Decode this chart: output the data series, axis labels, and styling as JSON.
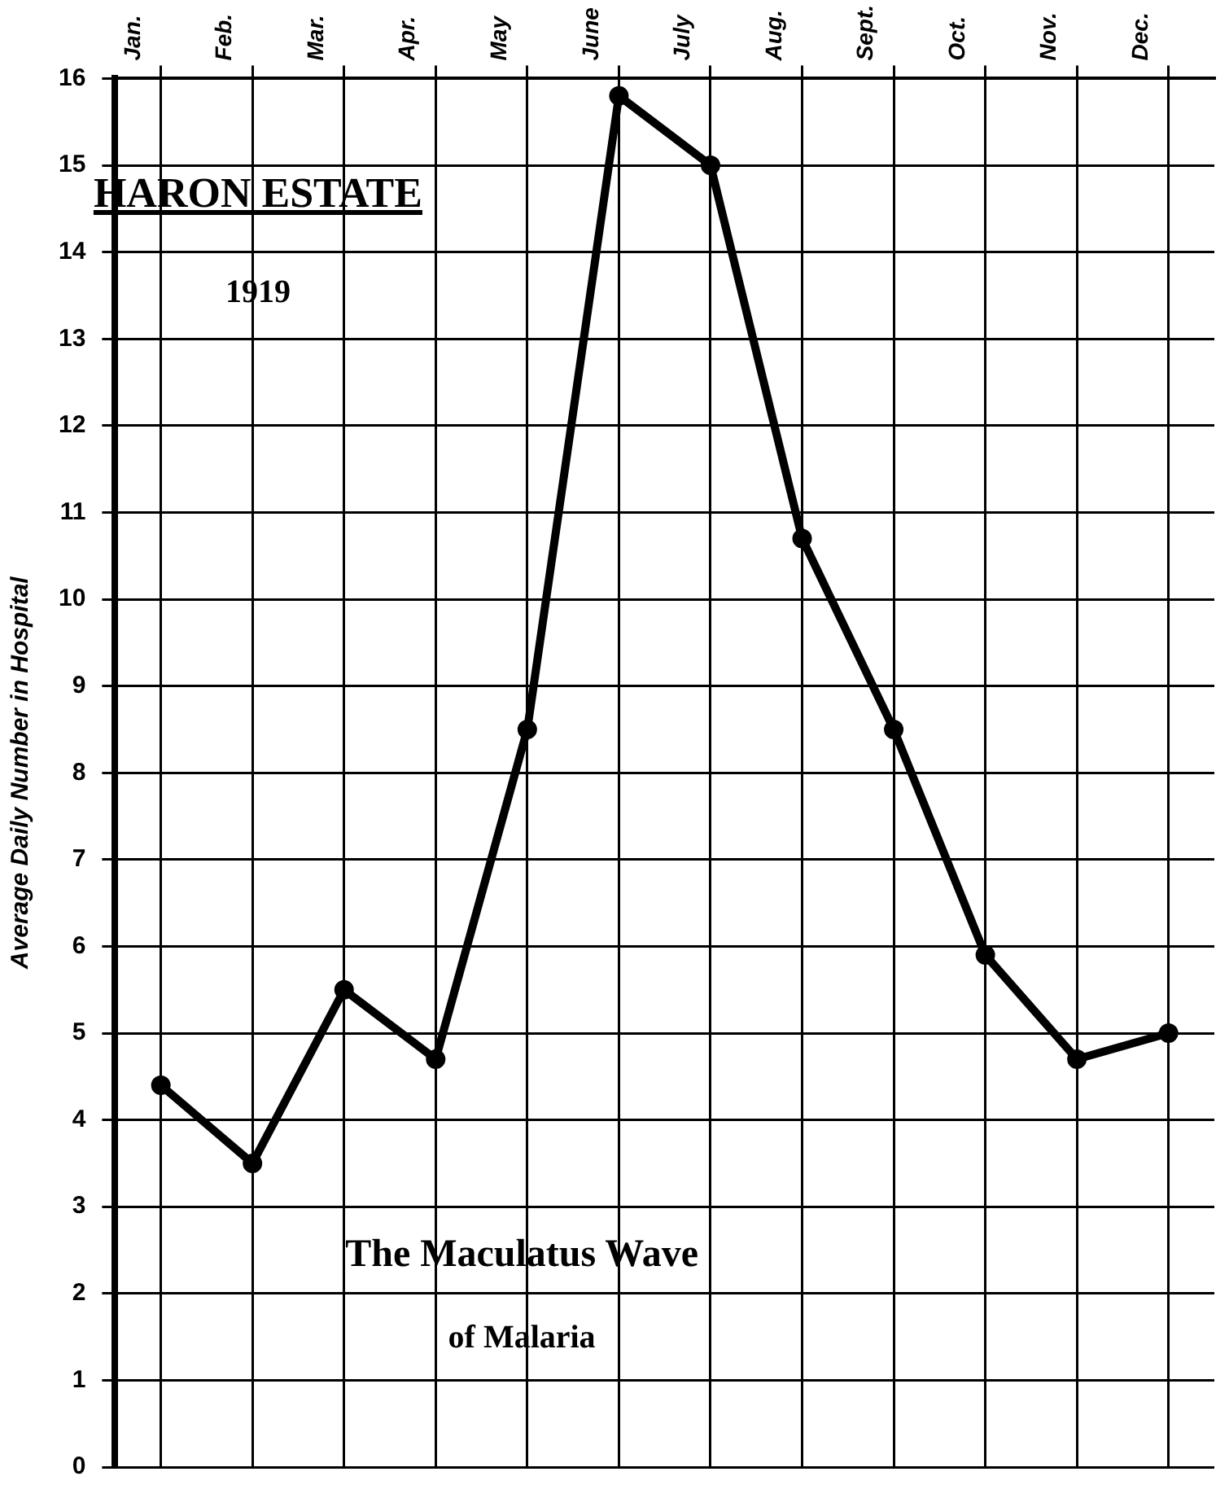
{
  "chart_data": {
    "type": "line",
    "ylabel": "Average Daily Number in Hospital",
    "categories": [
      "Jan.",
      "Feb.",
      "Mar.",
      "Apr.",
      "May",
      "June",
      "July",
      "Aug.",
      "Sept.",
      "Oct.",
      "Nov.",
      "Dec."
    ],
    "series": [
      {
        "color": "#000000",
        "values": [
          4.4,
          3.5,
          5.5,
          4.7,
          8.5,
          15.8,
          15.0,
          10.7,
          8.5,
          5.9,
          4.7,
          5.0
        ]
      }
    ],
    "ylim": [
      0,
      16
    ],
    "yticks": [
      0,
      1,
      2,
      3,
      4,
      5,
      6,
      7,
      8,
      9,
      10,
      11,
      12,
      13,
      14,
      15,
      16
    ],
    "grid": true,
    "legend": false,
    "marker": "circle",
    "line_style": "solid",
    "annotations": [
      "HARON ESTATE",
      "1919",
      "The Maculatus Wave",
      "of Malaria"
    ]
  }
}
